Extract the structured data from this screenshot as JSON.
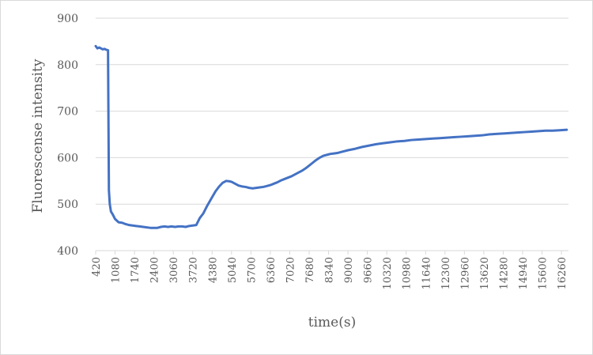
{
  "chart_data": {
    "type": "line",
    "title": "",
    "xlabel": "time(s)",
    "ylabel": "Fluorescense intensity",
    "ylim": [
      400,
      900
    ],
    "xlim": [
      420,
      16500
    ],
    "yticks": [
      "400",
      "500",
      "600",
      "700",
      "800",
      "900"
    ],
    "xticks": [
      "420",
      "1080",
      "1740",
      "2400",
      "3060",
      "3720",
      "4380",
      "5040",
      "5700",
      "6360",
      "7020",
      "7680",
      "8340",
      "9000",
      "9660",
      "10320",
      "10980",
      "11640",
      "12300",
      "12960",
      "13620",
      "14280",
      "14940",
      "15600",
      "16260"
    ],
    "grid": true,
    "legend": "none",
    "color": "#4472c4",
    "series": [
      {
        "name": "",
        "x": [
          420,
          480,
          540,
          600,
          660,
          720,
          780,
          840,
          870,
          900,
          940,
          1000,
          1080,
          1200,
          1320,
          1440,
          1560,
          1680,
          1800,
          1920,
          2040,
          2160,
          2280,
          2400,
          2520,
          2640,
          2760,
          2880,
          3000,
          3120,
          3240,
          3360,
          3480,
          3600,
          3720,
          3840,
          3960,
          4080,
          4200,
          4380,
          4500,
          4620,
          4740,
          4860,
          4980,
          5040,
          5160,
          5280,
          5400,
          5520,
          5640,
          5760,
          5880,
          6000,
          6120,
          6240,
          6360,
          6480,
          6600,
          6720,
          6840,
          6960,
          7080,
          7200,
          7320,
          7440,
          7560,
          7680,
          7800,
          7920,
          8040,
          8160,
          8280,
          8400,
          8520,
          8640,
          8760,
          8880,
          9000,
          9240,
          9480,
          9720,
          9960,
          10200,
          10440,
          10680,
          10920,
          11160,
          11400,
          11640,
          11880,
          12120,
          12360,
          12600,
          12840,
          13080,
          13320,
          13560,
          13800,
          14040,
          14280,
          14520,
          14760,
          15000,
          15240,
          15480,
          15720,
          15960,
          16200,
          16440
        ],
        "y": [
          840,
          835,
          837,
          835,
          833,
          834,
          832,
          831,
          530,
          500,
          484,
          478,
          468,
          461,
          460,
          457,
          455,
          454,
          453,
          452,
          451,
          450,
          449,
          449,
          449,
          451,
          452,
          451,
          452,
          451,
          452,
          452,
          451,
          453,
          454,
          455,
          470,
          480,
          495,
          515,
          528,
          538,
          546,
          550,
          549,
          548,
          544,
          540,
          538,
          537,
          535,
          534,
          535,
          536,
          537,
          539,
          541,
          544,
          547,
          551,
          554,
          557,
          560,
          564,
          568,
          572,
          577,
          583,
          589,
          595,
          600,
          604,
          606,
          608,
          609,
          610,
          612,
          614,
          616,
          619,
          623,
          626,
          629,
          631,
          633,
          635,
          636,
          638,
          639,
          640,
          641,
          642,
          643,
          644,
          645,
          646,
          647,
          648,
          650,
          651,
          652,
          653,
          654,
          655,
          656,
          657,
          658,
          658,
          659,
          660
        ]
      }
    ]
  }
}
